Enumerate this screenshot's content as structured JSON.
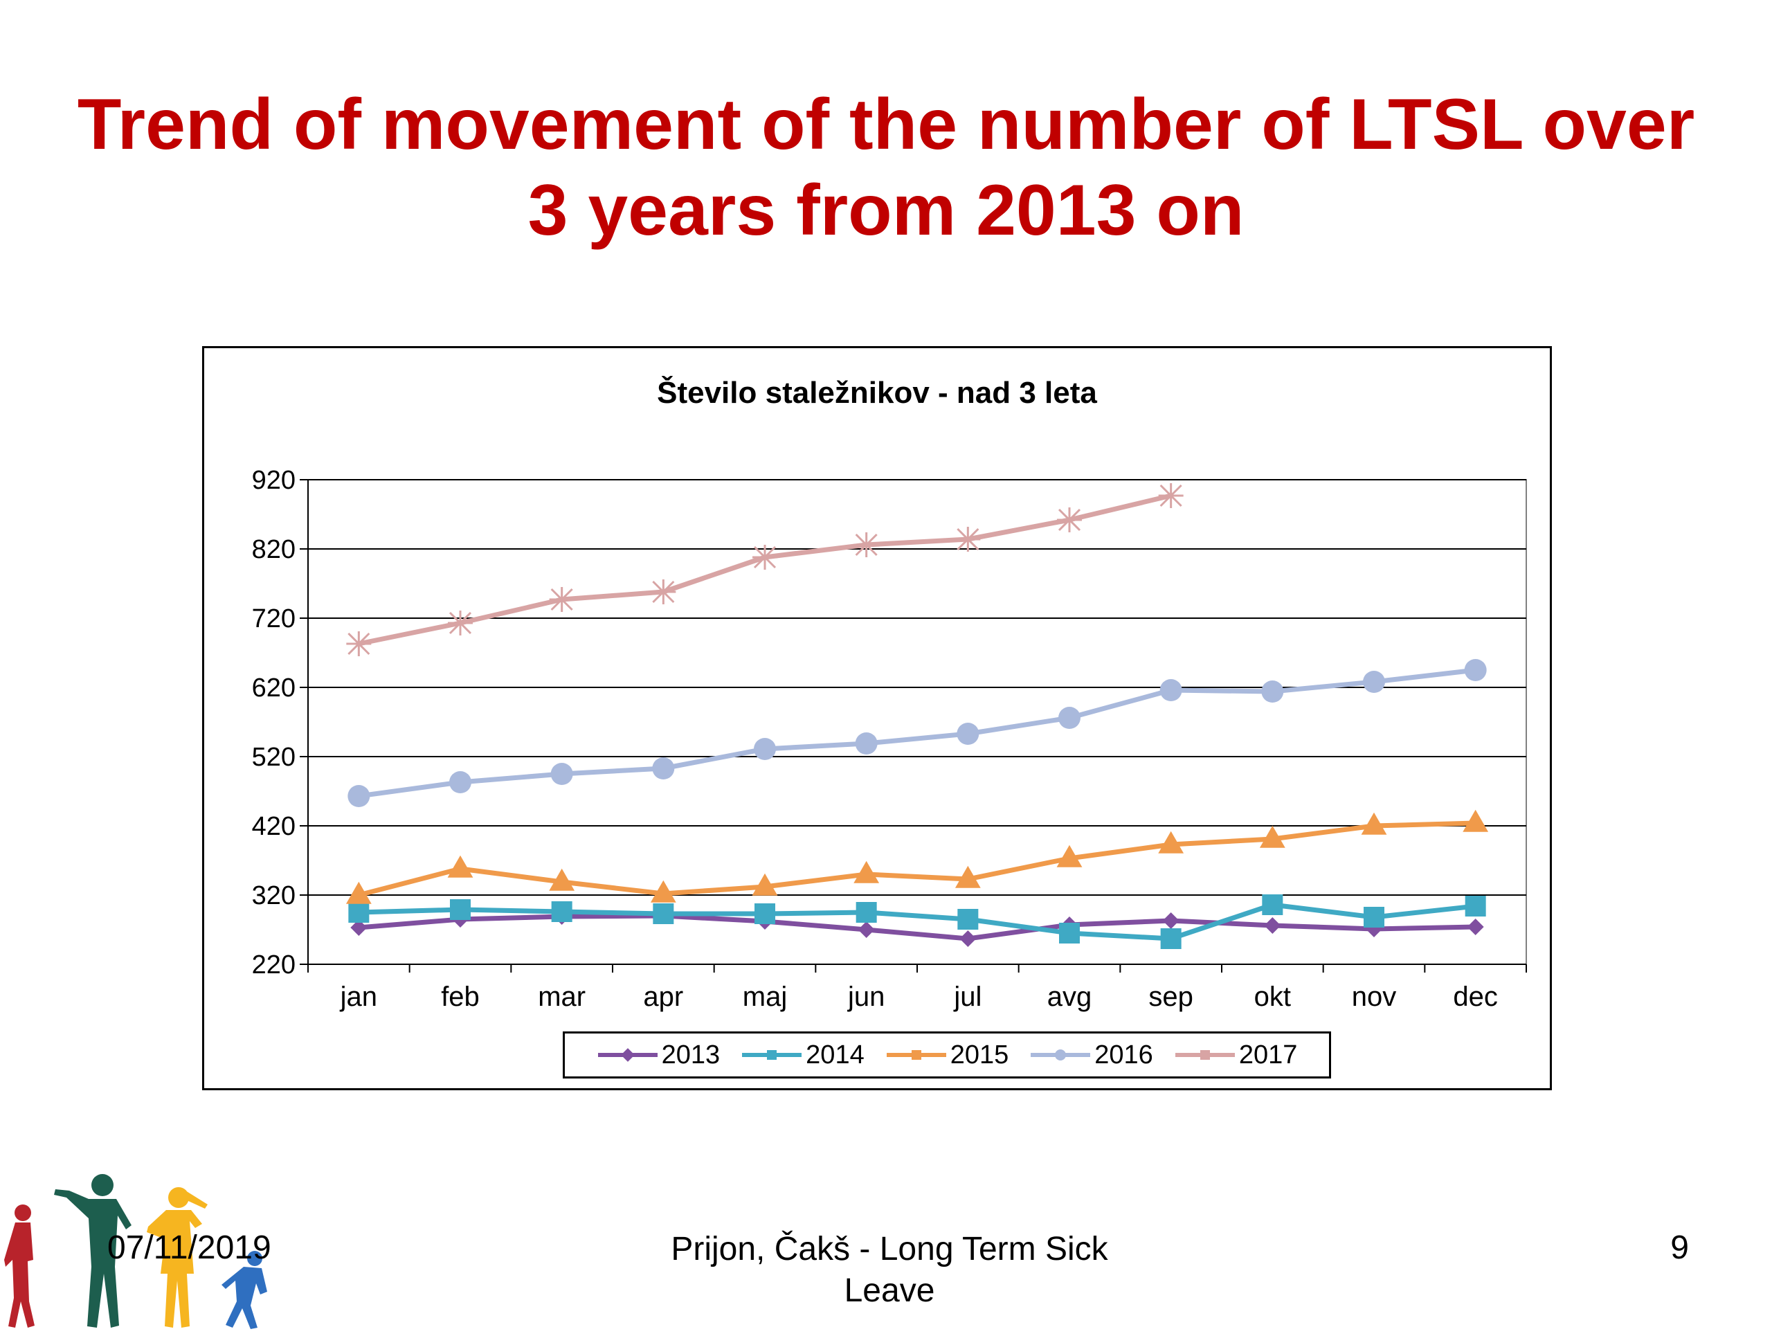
{
  "slide": {
    "title_line1": "Trend of movement of the number of LTSL over",
    "title_line2": "3 years from 2013 on"
  },
  "footer": {
    "date": "07/11/2019",
    "text": "Prijon, Čakš - Long Term Sick Leave",
    "page": "9"
  },
  "chart_data": {
    "type": "line",
    "title": "Število staležnikov - nad 3 leta",
    "xlabel": "",
    "ylabel": "",
    "categories": [
      "jan",
      "feb",
      "mar",
      "apr",
      "maj",
      "jun",
      "jul",
      "avg",
      "sep",
      "okt",
      "nov",
      "dec"
    ],
    "ylim": [
      220,
      920
    ],
    "yticks": [
      220,
      320,
      420,
      520,
      620,
      720,
      820,
      920
    ],
    "grid": true,
    "legend_position": "bottom",
    "series": [
      {
        "name": "2013",
        "color": "#7f4f9f",
        "marker": "diamond",
        "values": [
          273,
          285,
          289,
          290,
          282,
          270,
          257,
          277,
          283,
          276,
          271,
          274
        ]
      },
      {
        "name": "2014",
        "color": "#3fa9c4",
        "marker": "square",
        "values": [
          295,
          299,
          296,
          293,
          293,
          295,
          285,
          265,
          257,
          306,
          288,
          304
        ]
      },
      {
        "name": "2015",
        "color": "#f09a4a",
        "marker": "triangle",
        "values": [
          320,
          358,
          339,
          322,
          332,
          350,
          343,
          373,
          393,
          401,
          420,
          424
        ]
      },
      {
        "name": "2016",
        "color": "#a9b9dc",
        "marker": "circle",
        "values": [
          463,
          483,
          495,
          503,
          531,
          539,
          553,
          576,
          616,
          614,
          628,
          645
        ]
      },
      {
        "name": "2017",
        "color": "#d8a4a4",
        "marker": "asterisk",
        "values": [
          683,
          713,
          747,
          758,
          808,
          826,
          834,
          862,
          897,
          null,
          null,
          null
        ]
      }
    ]
  }
}
